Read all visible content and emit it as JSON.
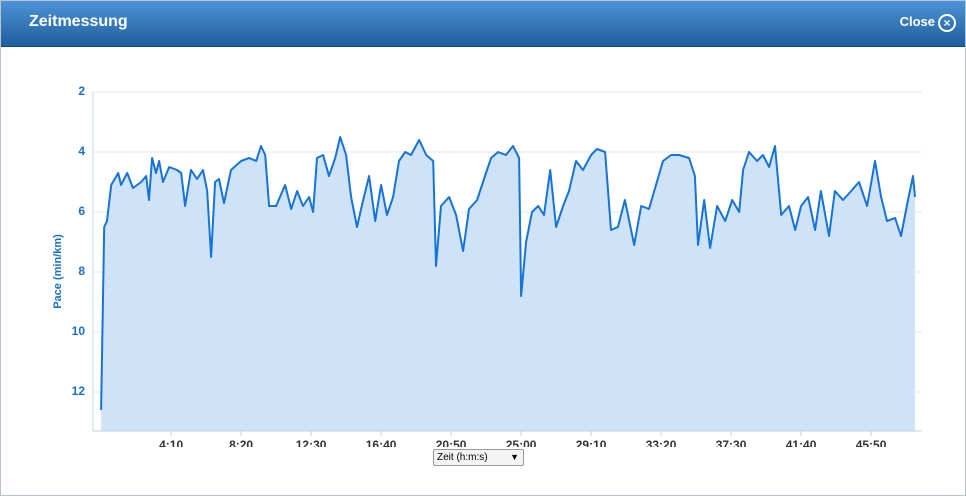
{
  "dialog": {
    "title": "Zeitmessung",
    "close": "Close"
  },
  "chart_data": {
    "type": "area",
    "ylabel": "Pace (min/km)",
    "xlabel": "Zeit (h:m:s)",
    "color": "#1673d8",
    "fill_color": "#cfe3f8",
    "grid": true,
    "y_inverted": true,
    "xlim": [
      -29,
      2932
    ],
    "ylim": [
      2,
      13.3
    ],
    "yticks": [
      2,
      4,
      6,
      8,
      10,
      12
    ],
    "xticks": [
      {
        "value": 250,
        "label": "4:10"
      },
      {
        "value": 500,
        "label": "8:20"
      },
      {
        "value": 750,
        "label": "12:30"
      },
      {
        "value": 1000,
        "label": "16:40"
      },
      {
        "value": 1250,
        "label": "20:50"
      },
      {
        "value": 1500,
        "label": "25:00"
      },
      {
        "value": 1750,
        "label": "29:10"
      },
      {
        "value": 2000,
        "label": "33:20"
      },
      {
        "value": 2250,
        "label": "37:30"
      },
      {
        "value": 2500,
        "label": "41:40"
      },
      {
        "value": 2750,
        "label": "45:50"
      }
    ],
    "x": [
      0,
      11,
      21,
      36,
      61,
      71,
      93,
      114,
      143,
      161,
      171,
      182,
      196,
      207,
      221,
      243,
      271,
      286,
      300,
      321,
      343,
      364,
      379,
      393,
      407,
      421,
      439,
      464,
      500,
      529,
      554,
      571,
      586,
      600,
      625,
      657,
      679,
      700,
      721,
      743,
      757,
      771,
      793,
      814,
      836,
      854,
      875,
      893,
      914,
      936,
      957,
      979,
      1000,
      1021,
      1043,
      1064,
      1086,
      1107,
      1136,
      1161,
      1186,
      1196,
      1214,
      1243,
      1268,
      1293,
      1314,
      1343,
      1371,
      1393,
      1418,
      1446,
      1471,
      1493,
      1500,
      1518,
      1539,
      1561,
      1582,
      1604,
      1625,
      1650,
      1671,
      1696,
      1721,
      1750,
      1771,
      1800,
      1821,
      1846,
      1871,
      1904,
      1929,
      1957,
      1982,
      2007,
      2036,
      2064,
      2100,
      2121,
      2132,
      2154,
      2175,
      2200,
      2229,
      2254,
      2279,
      2293,
      2314,
      2343,
      2364,
      2386,
      2407,
      2429,
      2457,
      2479,
      2500,
      2525,
      2550,
      2571,
      2600,
      2621,
      2650,
      2679,
      2707,
      2736,
      2764,
      2786,
      2807,
      2836,
      2857,
      2882,
      2900,
      2907
    ],
    "values": [
      12.6,
      6.5,
      6.3,
      5.1,
      4.7,
      5.1,
      4.7,
      5.2,
      5.0,
      4.8,
      5.6,
      4.2,
      4.7,
      4.3,
      5.0,
      4.5,
      4.6,
      4.7,
      5.8,
      4.6,
      4.9,
      4.6,
      5.3,
      7.5,
      5.0,
      4.9,
      5.7,
      4.6,
      4.3,
      4.2,
      4.3,
      3.8,
      4.1,
      5.8,
      5.8,
      5.1,
      5.9,
      5.3,
      5.8,
      5.5,
      6.0,
      4.2,
      4.1,
      4.8,
      4.2,
      3.5,
      4.1,
      5.5,
      6.5,
      5.6,
      4.8,
      6.3,
      5.1,
      6.1,
      5.5,
      4.3,
      4.0,
      4.1,
      3.6,
      4.1,
      4.3,
      7.8,
      5.8,
      5.5,
      6.1,
      7.3,
      5.9,
      5.6,
      4.8,
      4.2,
      4.0,
      4.1,
      3.8,
      4.2,
      8.8,
      7.0,
      6.0,
      5.8,
      6.1,
      4.6,
      6.5,
      5.8,
      5.3,
      4.3,
      4.6,
      4.1,
      3.9,
      4.0,
      6.6,
      6.5,
      5.6,
      7.1,
      5.8,
      5.9,
      5.1,
      4.3,
      4.1,
      4.1,
      4.2,
      4.8,
      7.1,
      5.6,
      7.2,
      5.8,
      6.3,
      5.6,
      6.0,
      4.6,
      4.0,
      4.3,
      4.1,
      4.5,
      3.8,
      6.1,
      5.8,
      6.6,
      5.8,
      5.5,
      6.6,
      5.3,
      6.8,
      5.3,
      5.6,
      5.3,
      5.0,
      5.8,
      4.3,
      5.5,
      6.3,
      6.2,
      6.8,
      5.6,
      4.8,
      5.5
    ]
  }
}
